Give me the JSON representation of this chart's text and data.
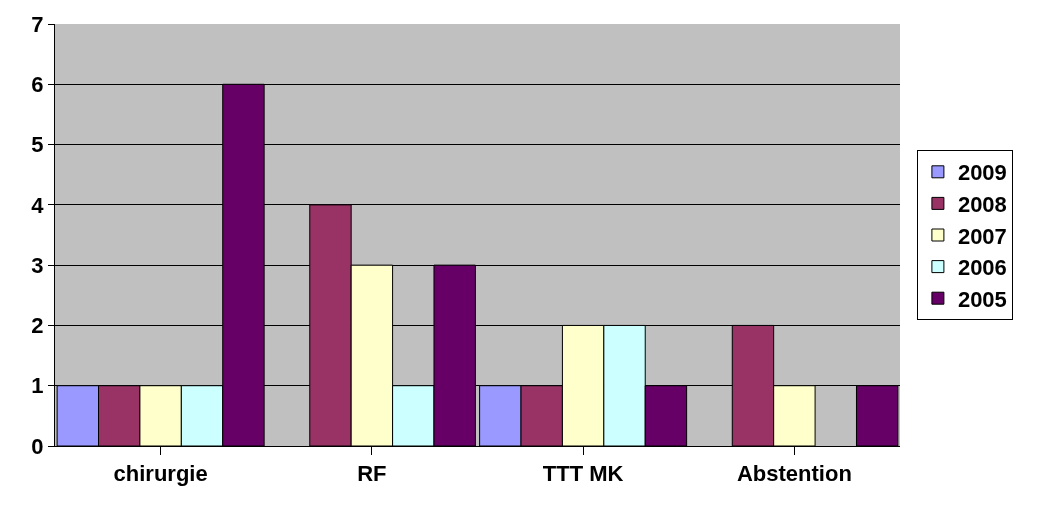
{
  "chart_data": {
    "type": "bar",
    "categories": [
      "chirurgie",
      "RF",
      "TTT MK",
      "Abstention"
    ],
    "series": [
      {
        "name": "2009",
        "color": "#9999ff",
        "values": [
          1,
          null,
          1,
          null
        ]
      },
      {
        "name": "2008",
        "color": "#993366",
        "values": [
          1,
          4,
          1,
          2
        ]
      },
      {
        "name": "2007",
        "color": "#ffffcc",
        "values": [
          1,
          3,
          2,
          1
        ]
      },
      {
        "name": "2006",
        "color": "#ccffff",
        "values": [
          1,
          1,
          2,
          null
        ]
      },
      {
        "name": "2005",
        "color": "#660066",
        "values": [
          6,
          3,
          1,
          1
        ]
      }
    ],
    "ylim": [
      0,
      7
    ],
    "yticks": [
      0,
      1,
      2,
      3,
      4,
      5,
      6,
      7
    ],
    "grid": "y",
    "legend": "right"
  }
}
